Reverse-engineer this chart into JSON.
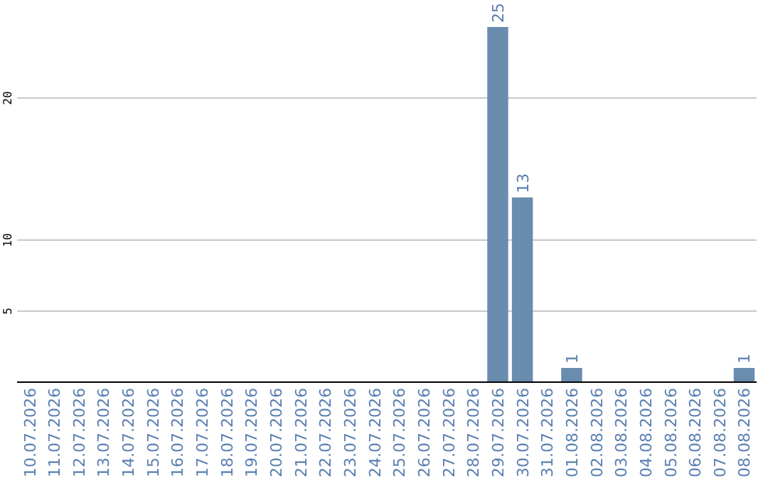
{
  "chart_data": {
    "type": "bar",
    "categories": [
      "10.07.2026",
      "11.07.2026",
      "12.07.2026",
      "13.07.2026",
      "14.07.2026",
      "15.07.2026",
      "16.07.2026",
      "17.07.2026",
      "18.07.2026",
      "19.07.2026",
      "20.07.2026",
      "21.07.2026",
      "22.07.2026",
      "23.07.2026",
      "24.07.2026",
      "25.07.2026",
      "26.07.2026",
      "27.07.2026",
      "28.07.2026",
      "29.07.2026",
      "30.07.2026",
      "31.07.2026",
      "01.08.2026",
      "02.08.2026",
      "03.08.2026",
      "04.08.2026",
      "05.08.2026",
      "06.08.2026",
      "07.08.2026",
      "08.08.2026"
    ],
    "values": [
      null,
      null,
      null,
      null,
      null,
      null,
      null,
      null,
      null,
      null,
      null,
      null,
      null,
      null,
      null,
      null,
      null,
      null,
      null,
      25,
      13,
      null,
      1,
      null,
      null,
      null,
      null,
      null,
      null,
      1
    ],
    "color": "#6a8caf",
    "ylim": [
      0,
      25
    ],
    "yticks": [
      5,
      10,
      20
    ],
    "grid": "y",
    "data_labels": true
  }
}
